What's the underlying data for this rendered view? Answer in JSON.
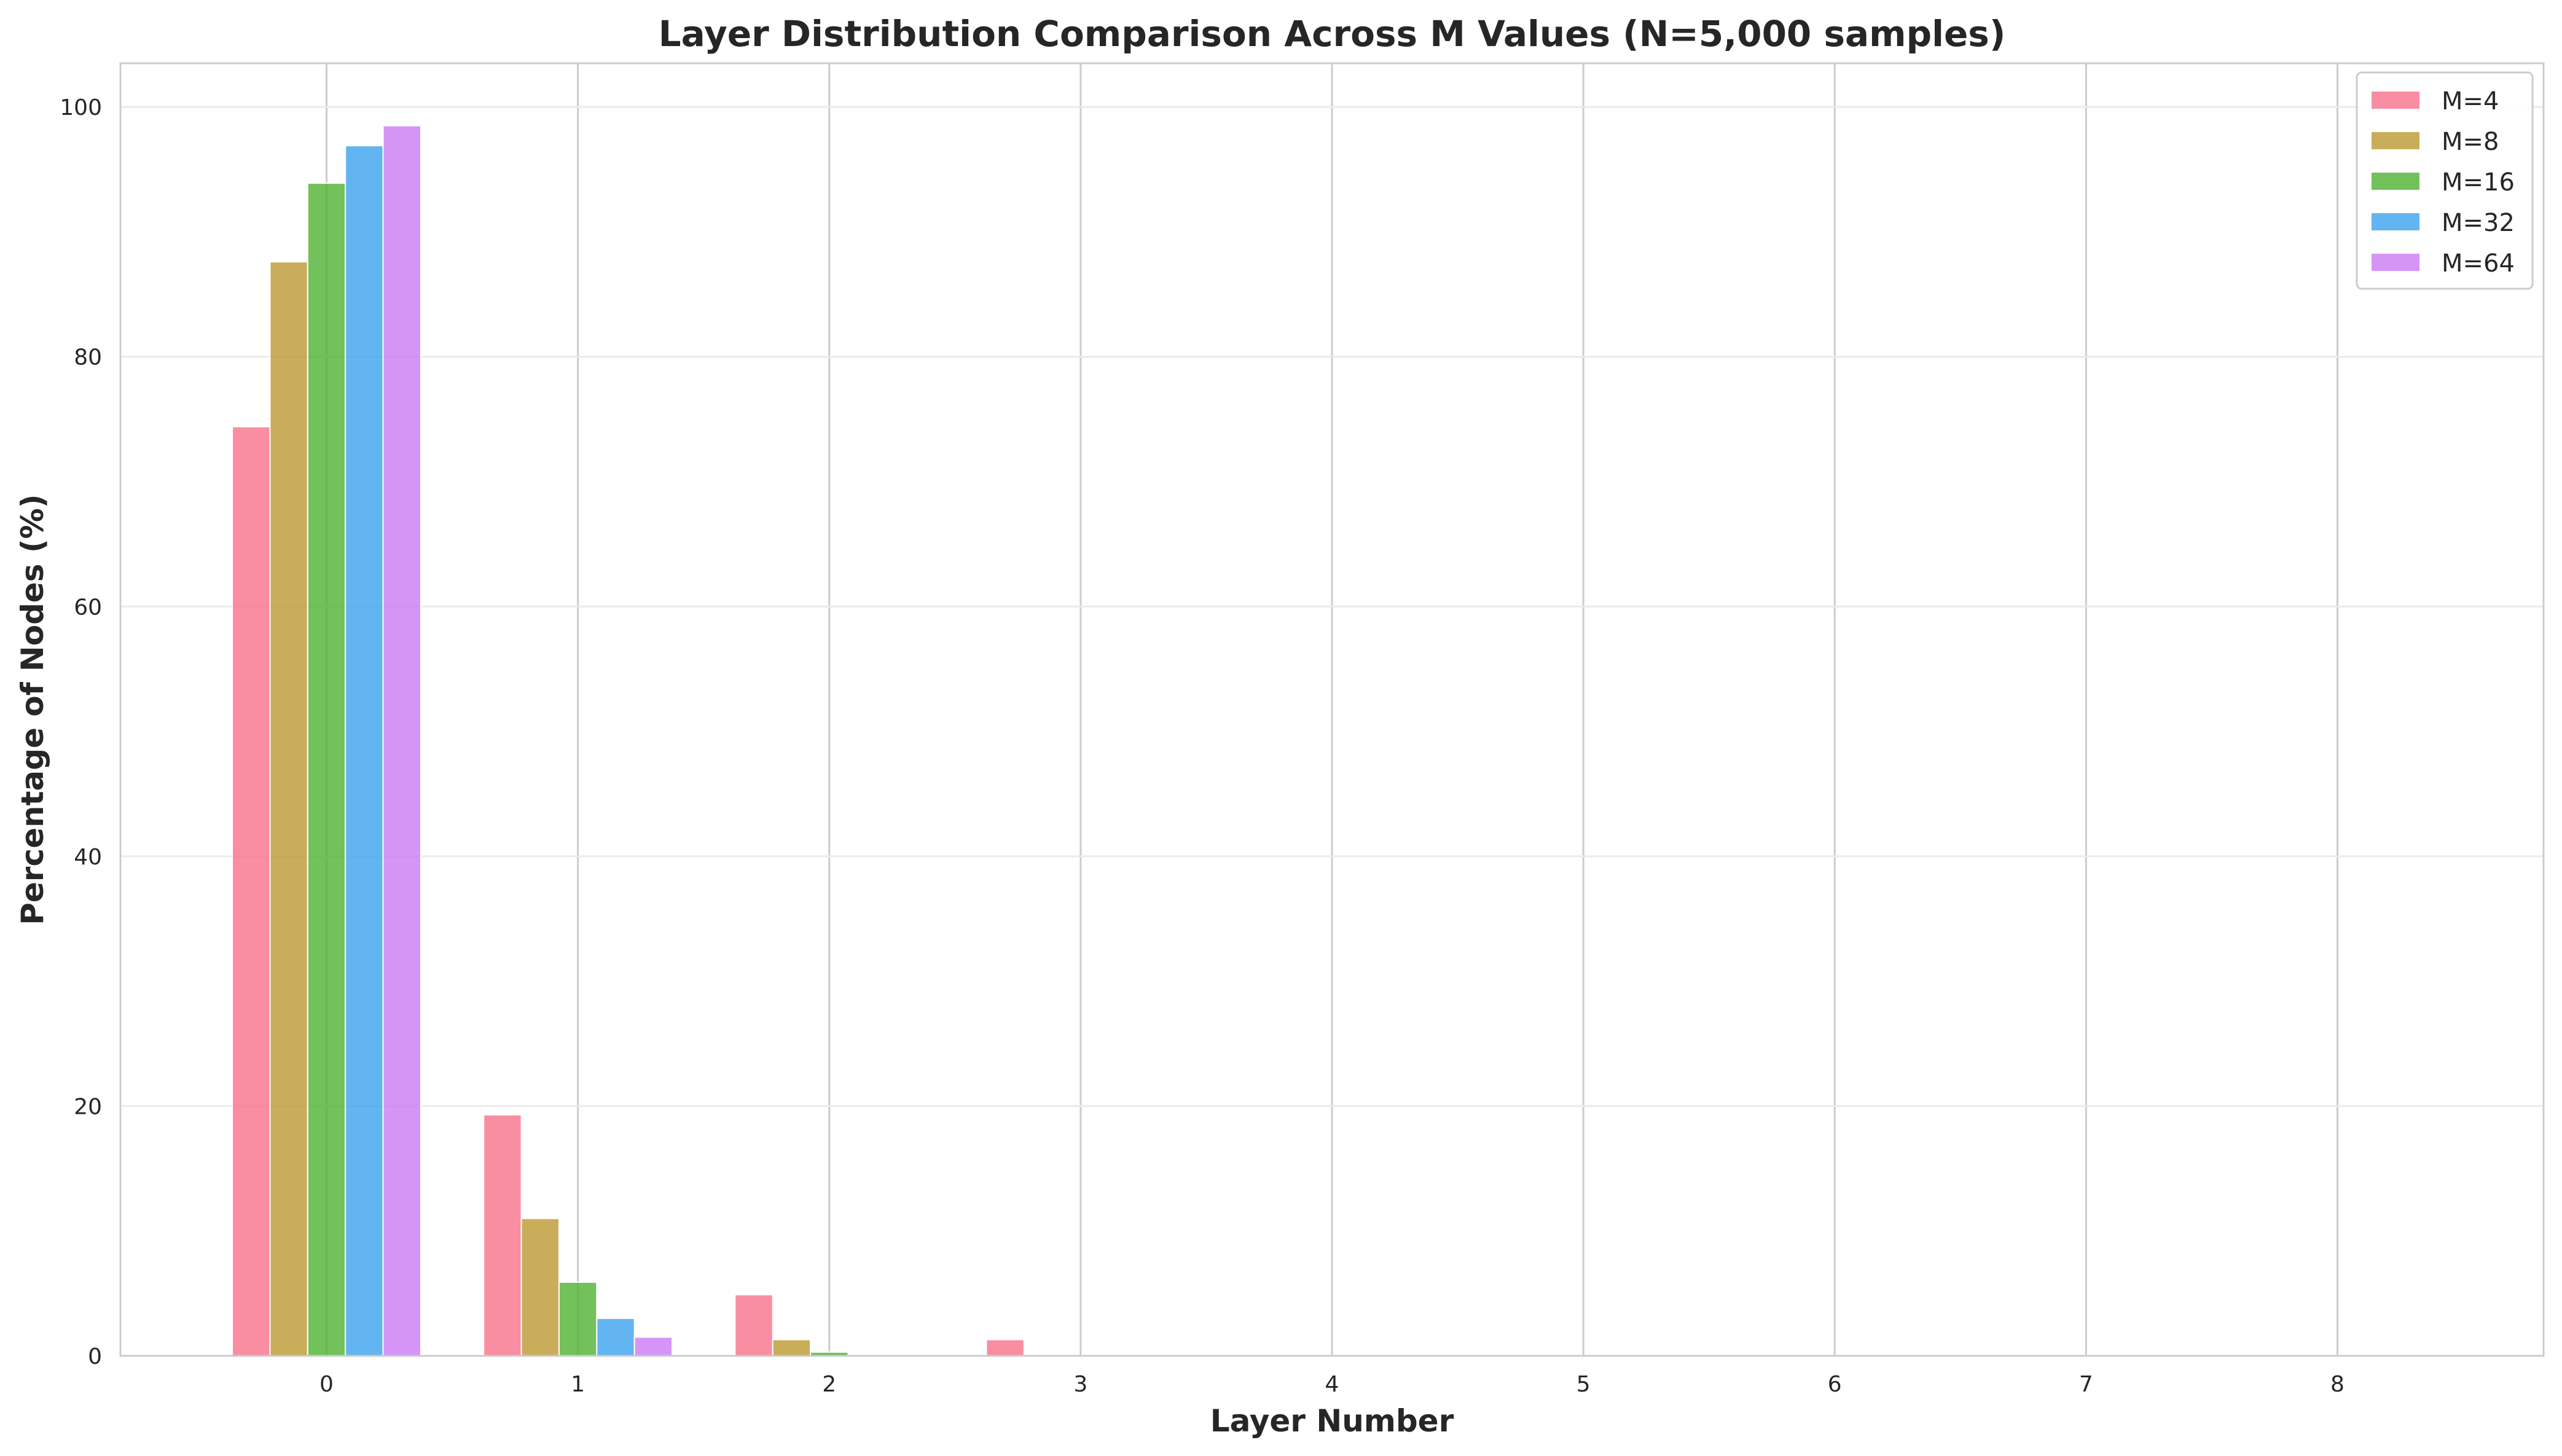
{
  "chart_data": {
    "type": "bar",
    "title": "Layer Distribution Comparison Across M Values (N=5,000 samples)",
    "xlabel": "Layer Number",
    "ylabel": "Percentage of Nodes (%)",
    "categories": [
      "0",
      "1",
      "2",
      "3",
      "4",
      "5",
      "6",
      "7",
      "8"
    ],
    "ylim": [
      0,
      103.5
    ],
    "yticks": [
      0,
      20,
      40,
      60,
      80,
      100
    ],
    "grid": true,
    "legend_position": "top-right",
    "series": [
      {
        "name": "M=4",
        "color": "#f77189",
        "values": [
          74.4,
          19.3,
          4.9,
          1.3,
          0.1,
          0.02,
          0,
          0,
          0
        ]
      },
      {
        "name": "M=8",
        "color": "#bb9832",
        "values": [
          87.6,
          11.0,
          1.3,
          0.1,
          0,
          0,
          0,
          0,
          0
        ]
      },
      {
        "name": "M=16",
        "color": "#50b131",
        "values": [
          93.9,
          5.9,
          0.3,
          0.02,
          0,
          0,
          0,
          0,
          0
        ]
      },
      {
        "name": "M=32",
        "color": "#3ba3ec",
        "values": [
          96.9,
          3.0,
          0.1,
          0,
          0,
          0,
          0,
          0,
          0
        ]
      },
      {
        "name": "M=64",
        "color": "#cc7af4",
        "values": [
          98.5,
          1.5,
          0.02,
          0,
          0,
          0,
          0,
          0,
          0
        ]
      }
    ]
  }
}
